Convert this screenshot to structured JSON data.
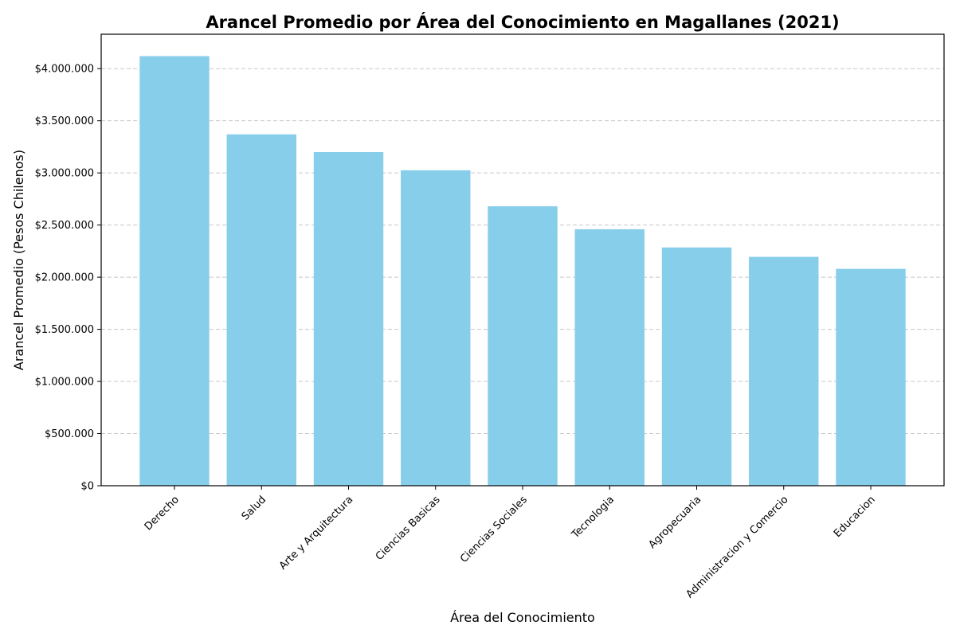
{
  "chart_data": {
    "type": "bar",
    "title": "Arancel Promedio por Área del Conocimiento en Magallanes (2021)",
    "xlabel": "Área del Conocimiento",
    "ylabel": "Arancel Promedio (Pesos Chilenos)",
    "categories": [
      "Derecho",
      "Salud",
      "Arte y Arquitectura",
      "Ciencias Basicas",
      "Ciencias Sociales",
      "Tecnologia",
      "Agropecuaria",
      "Administracion y Comercio",
      "Educacion"
    ],
    "values": [
      4120000,
      3370000,
      3200000,
      3025000,
      2680000,
      2460000,
      2285000,
      2195000,
      2080000
    ],
    "ylim": [
      0,
      4330000
    ],
    "yticks": [
      0,
      500000,
      1000000,
      1500000,
      2000000,
      2500000,
      3000000,
      3500000,
      4000000
    ],
    "ytick_labels": [
      "$0",
      "$500.000",
      "$1.000.000",
      "$1.500.000",
      "$2.000.000",
      "$2.500.000",
      "$3.000.000",
      "$3.500.000",
      "$4.000.000"
    ],
    "grid": "y-dashed",
    "bar_color": "#87ceeb"
  }
}
